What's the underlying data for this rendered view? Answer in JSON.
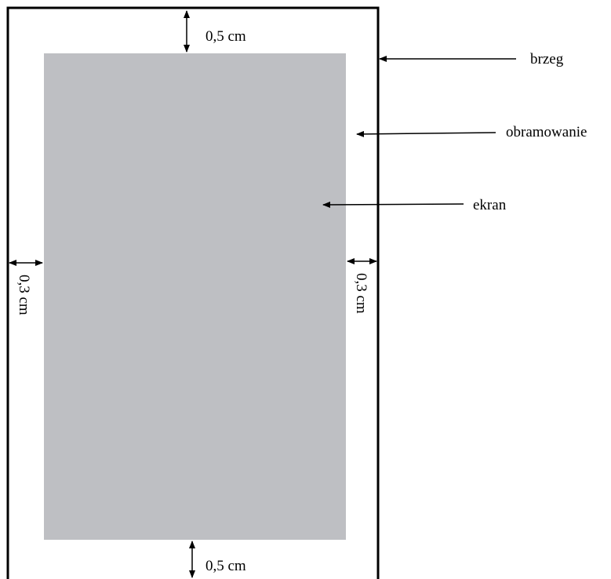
{
  "labels": {
    "border": "brzeg",
    "frame": "obramowanie",
    "screen": "ekran"
  },
  "dimensions": {
    "top_margin": "0,5 cm",
    "bottom_margin": "0,5 cm",
    "left_margin": "0,3 cm",
    "right_margin": "0,3 cm"
  },
  "colors": {
    "screen_fill": "#bebfc3",
    "outline": "#000000",
    "background": "#ffffff"
  }
}
